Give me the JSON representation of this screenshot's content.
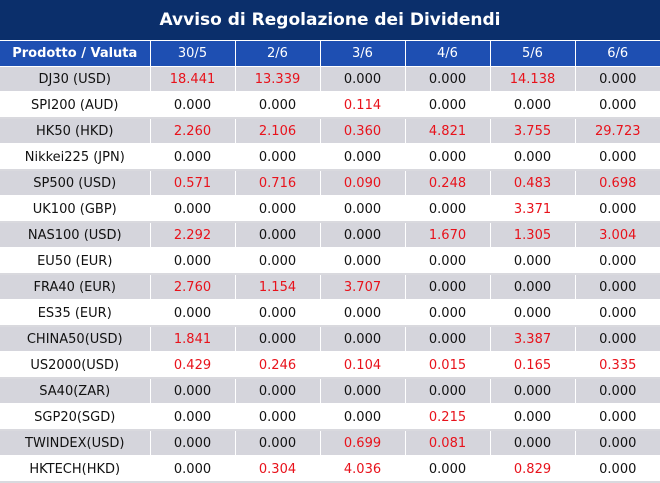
{
  "title": "Avviso di Regolazione dei Dividendi",
  "colors": {
    "header_dark": "#0b2f6b",
    "header_blue": "#1e4fb2",
    "row_shade": "#d5d5dc",
    "positive": "#e8121b"
  },
  "table": {
    "header_label": "Prodotto / Valuta",
    "dates": [
      "30/5",
      "2/6",
      "3/6",
      "4/6",
      "5/6",
      "6/6"
    ],
    "rows": [
      {
        "product": "DJ30 (USD)",
        "values": [
          "18.441",
          "13.339",
          "0.000",
          "0.000",
          "14.138",
          "0.000"
        ]
      },
      {
        "product": "SPI200 (AUD)",
        "values": [
          "0.000",
          "0.000",
          "0.114",
          "0.000",
          "0.000",
          "0.000"
        ]
      },
      {
        "product": "HK50 (HKD)",
        "values": [
          "2.260",
          "2.106",
          "0.360",
          "4.821",
          "3.755",
          "29.723"
        ]
      },
      {
        "product": "Nikkei225 (JPN)",
        "values": [
          "0.000",
          "0.000",
          "0.000",
          "0.000",
          "0.000",
          "0.000"
        ]
      },
      {
        "product": "SP500 (USD)",
        "values": [
          "0.571",
          "0.716",
          "0.090",
          "0.248",
          "0.483",
          "0.698"
        ]
      },
      {
        "product": "UK100 (GBP)",
        "values": [
          "0.000",
          "0.000",
          "0.000",
          "0.000",
          "3.371",
          "0.000"
        ]
      },
      {
        "product": "NAS100 (USD)",
        "values": [
          "2.292",
          "0.000",
          "0.000",
          "1.670",
          "1.305",
          "3.004"
        ]
      },
      {
        "product": "EU50 (EUR)",
        "values": [
          "0.000",
          "0.000",
          "0.000",
          "0.000",
          "0.000",
          "0.000"
        ]
      },
      {
        "product": "FRA40 (EUR)",
        "values": [
          "2.760",
          "1.154",
          "3.707",
          "0.000",
          "0.000",
          "0.000"
        ]
      },
      {
        "product": "ES35 (EUR)",
        "values": [
          "0.000",
          "0.000",
          "0.000",
          "0.000",
          "0.000",
          "0.000"
        ]
      },
      {
        "product": "CHINA50(USD)",
        "values": [
          "1.841",
          "0.000",
          "0.000",
          "0.000",
          "3.387",
          "0.000"
        ]
      },
      {
        "product": "US2000(USD)",
        "values": [
          "0.429",
          "0.246",
          "0.104",
          "0.015",
          "0.165",
          "0.335"
        ]
      },
      {
        "product": "SA40(ZAR)",
        "values": [
          "0.000",
          "0.000",
          "0.000",
          "0.000",
          "0.000",
          "0.000"
        ]
      },
      {
        "product": "SGP20(SGD)",
        "values": [
          "0.000",
          "0.000",
          "0.000",
          "0.215",
          "0.000",
          "0.000"
        ]
      },
      {
        "product": "TWINDEX(USD)",
        "values": [
          "0.000",
          "0.000",
          "0.699",
          "0.081",
          "0.000",
          "0.000"
        ]
      },
      {
        "product": "HKTECH(HKD)",
        "values": [
          "0.000",
          "0.304",
          "4.036",
          "0.000",
          "0.829",
          "0.000"
        ]
      }
    ]
  }
}
